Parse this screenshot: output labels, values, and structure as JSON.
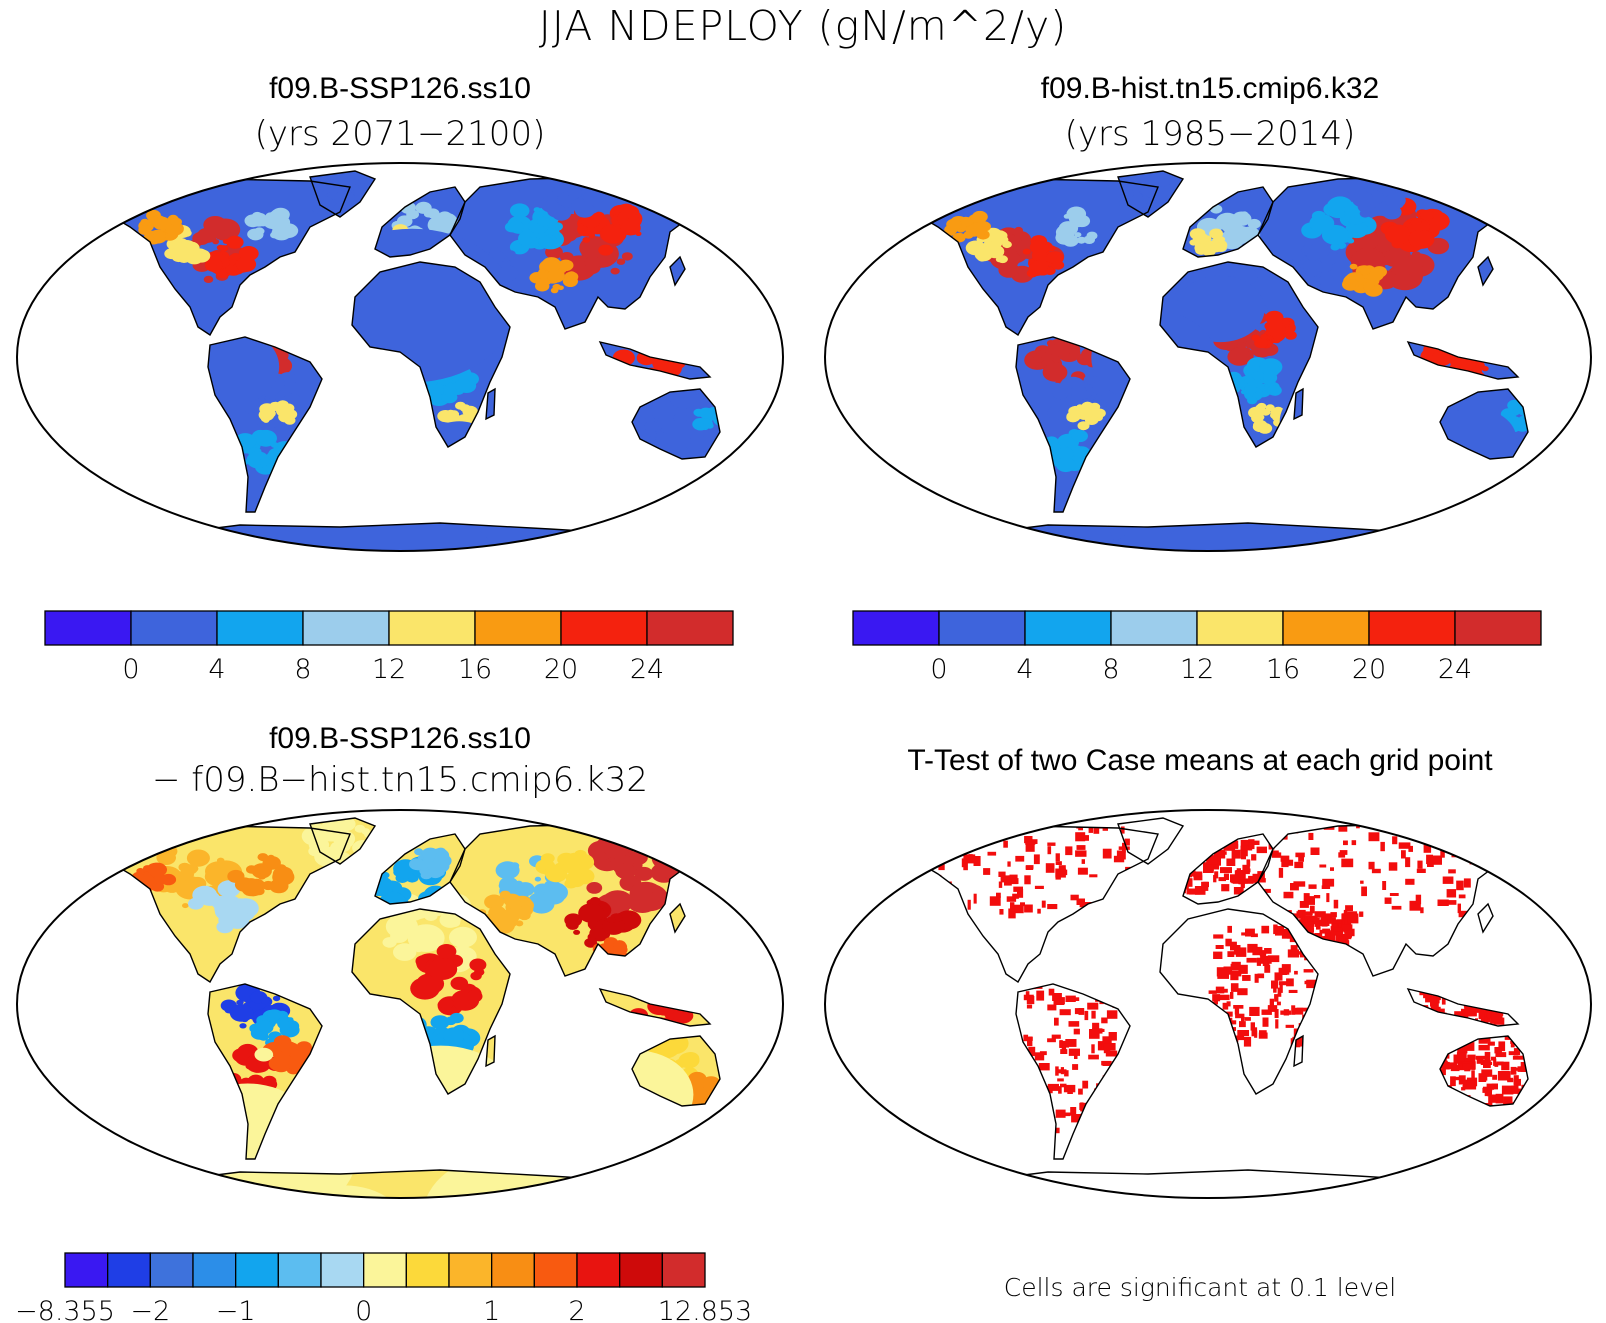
{
  "title": "JJA NDEPLOY (gN/m^2/y)",
  "panels": [
    {
      "id": "case1",
      "title": "f09.B-SSP126.ss10",
      "subtitle": "(yrs 2071−2100)"
    },
    {
      "id": "case2",
      "title": "f09.B-hist.tn15.cmip6.k32",
      "subtitle": "(yrs 1985−2014)"
    },
    {
      "id": "diff",
      "title": "f09.B-SSP126.ss10",
      "subtitle": "− f09.B−hist.tn15.cmip6.k32"
    },
    {
      "id": "ttest",
      "title": "T-Test of two Case means at each grid point",
      "note": "Cells are significant at 0.1 level"
    }
  ],
  "colorbar_abs": {
    "colors": [
      "#3a18f2",
      "#3e64dc",
      "#12a5ee",
      "#9ccdec",
      "#fae56a",
      "#f99b12",
      "#f4220e",
      "#d22c2c"
    ],
    "labels": [
      "0",
      "4",
      "8",
      "12",
      "16",
      "20",
      "24"
    ]
  },
  "colorbar_diff": {
    "colors": [
      "#3a18f2",
      "#1f3ee6",
      "#3e72dc",
      "#2c8ee8",
      "#12a5ee",
      "#5cbdf0",
      "#a8d8f2",
      "#fbf59a",
      "#fcd93a",
      "#fbb52a",
      "#f88e14",
      "#f85a10",
      "#e81410",
      "#ce0a0a",
      "#d22c2c"
    ],
    "labels": [
      "−8.355",
      "−2",
      "−1",
      "0",
      "1",
      "2",
      "12.853"
    ]
  },
  "legend_colors": {
    "land_base_abs": "#3e64dc",
    "land_base_diff": "#fae56a",
    "significant": "#f20d0d",
    "outline": "#000000"
  }
}
